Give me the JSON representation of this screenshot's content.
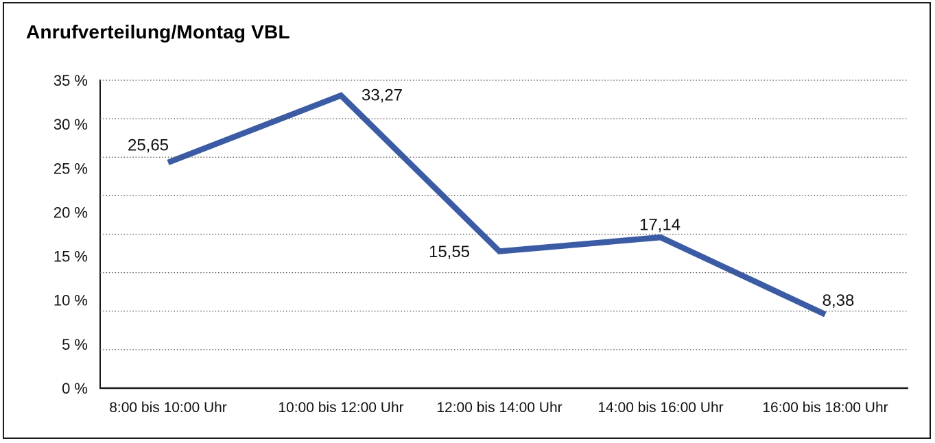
{
  "window": {
    "background_color": "#ffffff",
    "frame_border_color": "#1a1a1a"
  },
  "chart_data": {
    "type": "line",
    "title": "Anrufverteilung/Montag VBL",
    "categories": [
      "8:00 bis 10:00 Uhr",
      "10:00 bis 12:00 Uhr",
      "12:00 bis 14:00 Uhr",
      "14:00 bis 16:00 Uhr",
      "16:00 bis 18:00 Uhr"
    ],
    "values": [
      25.65,
      33.27,
      15.55,
      17.14,
      8.38
    ],
    "data_labels": [
      "25,65",
      "33,27",
      "15,55",
      "17,14",
      "8,38"
    ],
    "xlabel": "",
    "ylabel": "",
    "ylim": [
      0,
      35
    ],
    "y_ticks": [
      0,
      5,
      10,
      15,
      20,
      25,
      30,
      35
    ],
    "y_tick_labels": [
      "0 %",
      "5 %",
      "10 %",
      "15 %",
      "20 %",
      "25 %",
      "30 %",
      "35 %"
    ],
    "grid": {
      "horizontal": true,
      "style": "dotted",
      "divisions": 8,
      "vertical": false
    },
    "legend": "none",
    "colors": {
      "line": "#3B5CA5",
      "axis": "#1a1a1a",
      "grid": "#4d4d4d",
      "text": "#000000"
    }
  }
}
